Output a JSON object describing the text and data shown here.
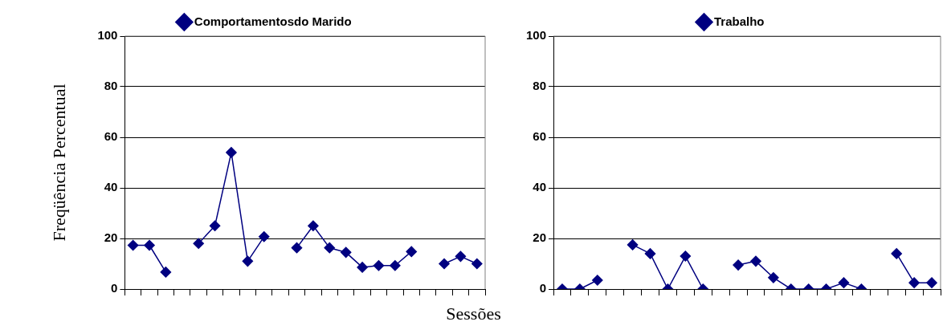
{
  "chart_data": [
    {
      "type": "line",
      "ylabel": "Freqüência Percentual",
      "xlabel": "Sessões",
      "categories": [
        null,
        null,
        null,
        null,
        null,
        null,
        null,
        null,
        null,
        null,
        null,
        null,
        null,
        null,
        null,
        null,
        null,
        null,
        null,
        null,
        null,
        null
      ],
      "series": [
        {
          "name": "Comportamentosdo Marido",
          "color": "#000080",
          "values": [
            17.3,
            17.3,
            6.7,
            null,
            18,
            25,
            54,
            11,
            20.7,
            null,
            16.3,
            25,
            16.3,
            14.5,
            8.6,
            9.3,
            9.3,
            14.8,
            null,
            10,
            12.9,
            10
          ]
        }
      ],
      "ylim": [
        0,
        100
      ],
      "yticks": [
        0,
        20,
        40,
        60,
        80,
        100
      ],
      "grid": "y",
      "legend": "top",
      "marker": "diamond",
      "line_style": "solid",
      "tick_labels": "y"
    },
    {
      "type": "line",
      "categories": [
        null,
        null,
        null,
        null,
        null,
        null,
        null,
        null,
        null,
        null,
        null,
        null,
        null,
        null,
        null,
        null,
        null,
        null,
        null,
        null,
        null,
        null
      ],
      "series": [
        {
          "name": "Trabalho",
          "color": "#000080",
          "values": [
            0,
            0,
            3.5,
            null,
            17.5,
            14,
            0,
            13,
            0,
            null,
            9.5,
            11,
            4.5,
            0,
            0,
            0,
            2.5,
            0,
            null,
            14,
            2.5,
            2.5
          ]
        }
      ],
      "ylim": [
        0,
        100
      ],
      "yticks": [
        0,
        20,
        40,
        60,
        80,
        100
      ],
      "grid": "y",
      "legend": "top",
      "marker": "diamond",
      "line_style": "solid",
      "tick_labels": "y"
    }
  ]
}
